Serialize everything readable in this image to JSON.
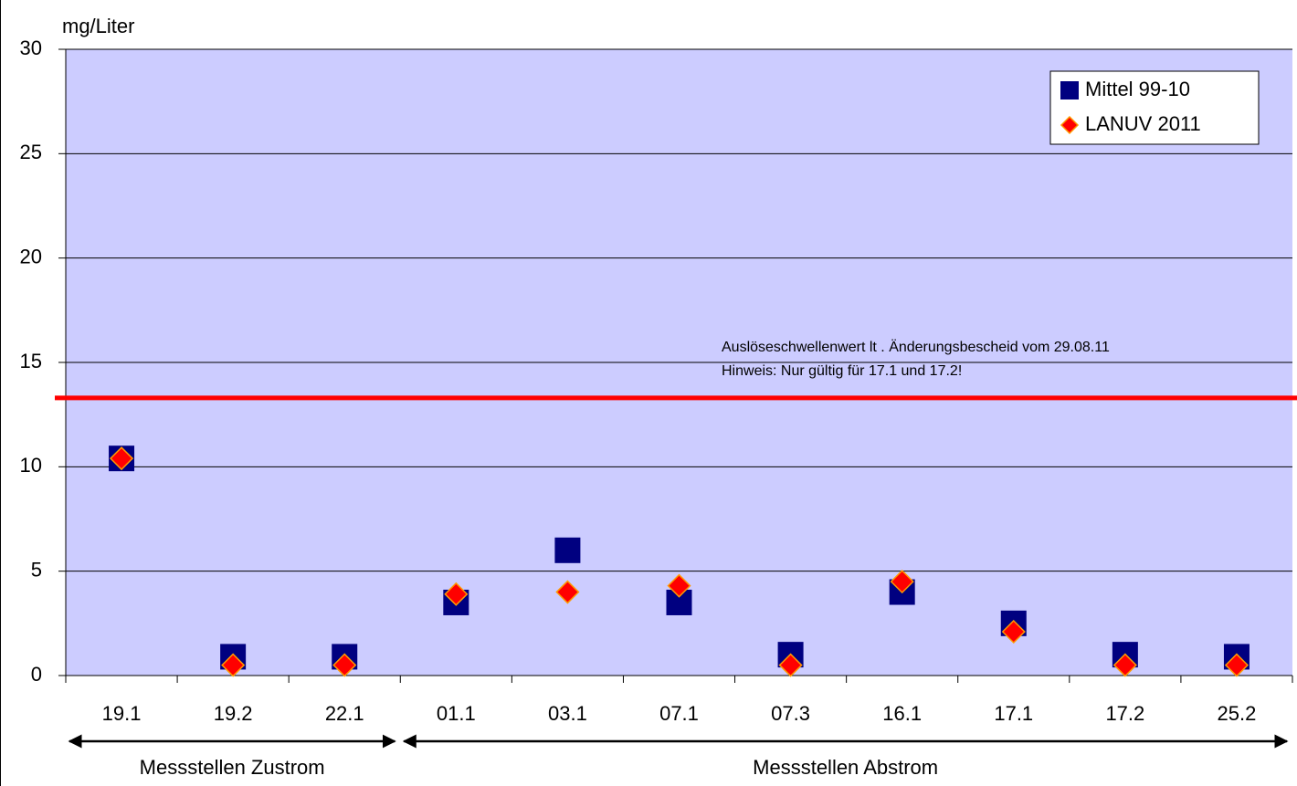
{
  "chart_data": {
    "type": "scatter",
    "y_label": "mg/Liter",
    "categories": [
      "19.1",
      "19.2",
      "22.1",
      "01.1",
      "03.1",
      "07.1",
      "07.3",
      "16.1",
      "17.1",
      "17.2",
      "25.2"
    ],
    "series": [
      {
        "name": "Mittel 99-10",
        "color": "#000080",
        "marker": "square",
        "values": [
          10.4,
          0.9,
          0.9,
          3.5,
          6.0,
          3.5,
          1.0,
          4.0,
          2.5,
          1.0,
          0.9
        ]
      },
      {
        "name": "LANUV 2011",
        "color": "#ff0000",
        "marker": "diamond",
        "values": [
          10.4,
          0.5,
          0.5,
          3.9,
          4.0,
          4.3,
          0.5,
          4.5,
          2.1,
          0.5,
          0.5
        ]
      }
    ],
    "ylim": [
      0,
      30
    ],
    "yticks": [
      0,
      5,
      10,
      15,
      20,
      25,
      30
    ],
    "grid": true,
    "legend": "top-right",
    "reference_line": {
      "value": 13.3,
      "color": "#ff0000"
    },
    "annotations": [
      "Auslöseschwellenwert lt . Änderungsbescheid vom 29.08.11",
      "Hinweis: Nur gültig für 17.1 und 17.2!"
    ],
    "groups": [
      {
        "label": "Messstellen Zustrom",
        "start": 0,
        "end": 2
      },
      {
        "label": "Messstellen Abstrom",
        "start": 3,
        "end": 10
      }
    ]
  }
}
